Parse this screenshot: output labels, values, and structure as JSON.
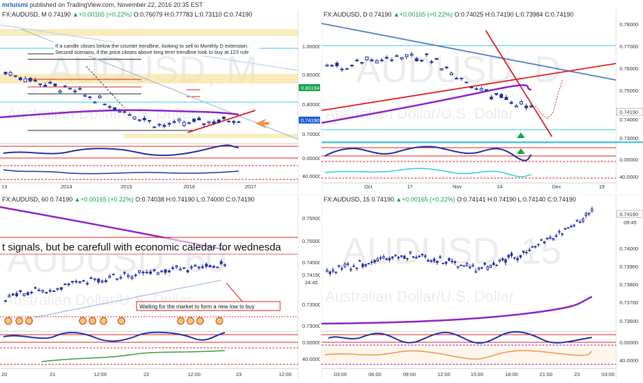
{
  "header": {
    "user": "mrluismi",
    "published": "published on TradingView.com, November 22, 2016 20:35 EST"
  },
  "colors": {
    "up": "#14a04a",
    "candle": "#1a2fa3",
    "ma": "#8b1fc9",
    "trend_red": "#e01b1b",
    "trend_blue": "#4b7fc3",
    "zone_yellow": "#f6e2a0",
    "cyan": "#30c7e0",
    "orange": "#f0934a",
    "price_tag": "#1e5fd6",
    "green_tag": "#12a34a"
  },
  "panels": [
    {
      "id": "monthly",
      "title_prefix": "FX:AUDUSD, M",
      "price": "0.74190",
      "change": "▲+0.00165 (+0.22%)",
      "ohlc": "O:0.76079 H:0.77783 L:0.73110 C:0.74190",
      "watermark": "AUDUSD, M",
      "subwatermark": "Australian Dollar/U.S. Dollar",
      "annotation_lines": [
        "If a candle closes below the counter trendline, looking to sell to Monthly D extension.",
        "Second scenario, if the price closes above long term trendline look to buy at 123 rule"
      ],
      "y_labels": [
        "1.00000",
        "0.90000",
        "0.80194",
        "0.80000",
        "0.74190",
        "0.70000",
        "0.00000",
        "40.0000"
      ],
      "x_labels": [
        "13",
        "2014",
        "2015",
        "2016",
        "2017"
      ]
    },
    {
      "id": "daily",
      "title_prefix": "FX:AUDUSD, D",
      "price": "0.74190",
      "change": "▲+0.00165 (+0.22%)",
      "ohlc": "O:0.74025 H:0.74190 L:0.73984 C:0.74190",
      "watermark": "AUDUSD, D",
      "subwatermark": "Australian Dollar/U.S. Dollar",
      "y_labels": [
        "0.78000",
        "0.77000",
        "0.76000",
        "0.75000",
        "0.74190",
        "0.74000",
        "0.73000",
        "0.00000",
        "40.0000"
      ],
      "x_labels": [
        "Oct",
        "17",
        "Nov",
        "14",
        "Dec",
        "19"
      ]
    },
    {
      "id": "h1",
      "title_prefix": "FX:AUDUSD, 60",
      "price": "0.74190",
      "change": "▲+0.00165 (+0.22%)",
      "ohlc": "O:0.74038 H:0.74190 L:0.74000 C:0.74190",
      "watermark": "AUDUSD, 60",
      "subwatermark": "Australian Dollar/U.S. Dollar",
      "banner": "t signals, but be carefull with economic caledar for wednesda",
      "note": "Waiting for the market to form a new low to buy",
      "y_labels": [
        "0.75500",
        "0.75000",
        "0.74500",
        "0.74190",
        "24:45",
        "0.73500",
        "0.73000",
        "0.00000",
        "40.0000"
      ],
      "x_labels": [
        "20",
        "21",
        "12:00",
        "22",
        "12:00",
        "23",
        "12:00"
      ]
    },
    {
      "id": "m15",
      "title_prefix": "FX:AUDUSD, 15",
      "price": "0.74190",
      "change": "▲+0.00165 (+0.22%)",
      "ohlc": "O:0.74141 H:0.74190 L:0.74140 C:0.74190",
      "watermark": "AUDUSD, 15",
      "subwatermark": "Australian Dollar/U.S. Dollar",
      "y_labels": [
        "0.74190",
        "09:45",
        "0.74000",
        "0.73900",
        "0.73800",
        "0.73700",
        "0.73600",
        "0.00000",
        "40.0000"
      ],
      "x_labels": [
        "03:00",
        "06:00",
        "09:00",
        "12:00",
        "15:00",
        "18:00",
        "21:00",
        "23",
        "03:00"
      ]
    }
  ],
  "chart_data": [
    {
      "type": "line",
      "title": "FX:AUDUSD, M",
      "x": [
        "2014",
        "2015",
        "2016",
        "2017"
      ],
      "series": [
        {
          "values": [
            0.89,
            0.82,
            0.72,
            0.742
          ]
        }
      ],
      "ylim": [
        0.68,
        1.06
      ]
    },
    {
      "type": "line",
      "title": "FX:AUDUSD, D",
      "x": [
        "Oct",
        "17",
        "Nov",
        "14",
        "Dec"
      ],
      "series": [
        {
          "values": [
            0.761,
            0.765,
            0.766,
            0.75,
            0.742
          ]
        }
      ],
      "ylim": [
        0.728,
        0.782
      ]
    },
    {
      "type": "line",
      "title": "FX:AUDUSD, 60",
      "x": [
        "21",
        "12:00",
        "22",
        "12:00"
      ],
      "series": [
        {
          "values": [
            0.733,
            0.737,
            0.74,
            0.7419
          ]
        }
      ],
      "ylim": [
        0.728,
        0.757
      ]
    },
    {
      "type": "line",
      "title": "FX:AUDUSD, 15",
      "x": [
        "03:00",
        "06:00",
        "09:00",
        "12:00",
        "15:00",
        "18:00",
        "21:00",
        "23"
      ],
      "series": [
        {
          "values": [
            0.7385,
            0.739,
            0.7395,
            0.7392,
            0.7386,
            0.7394,
            0.7405,
            0.7419
          ]
        }
      ],
      "ylim": [
        0.7355,
        0.7422
      ]
    }
  ]
}
